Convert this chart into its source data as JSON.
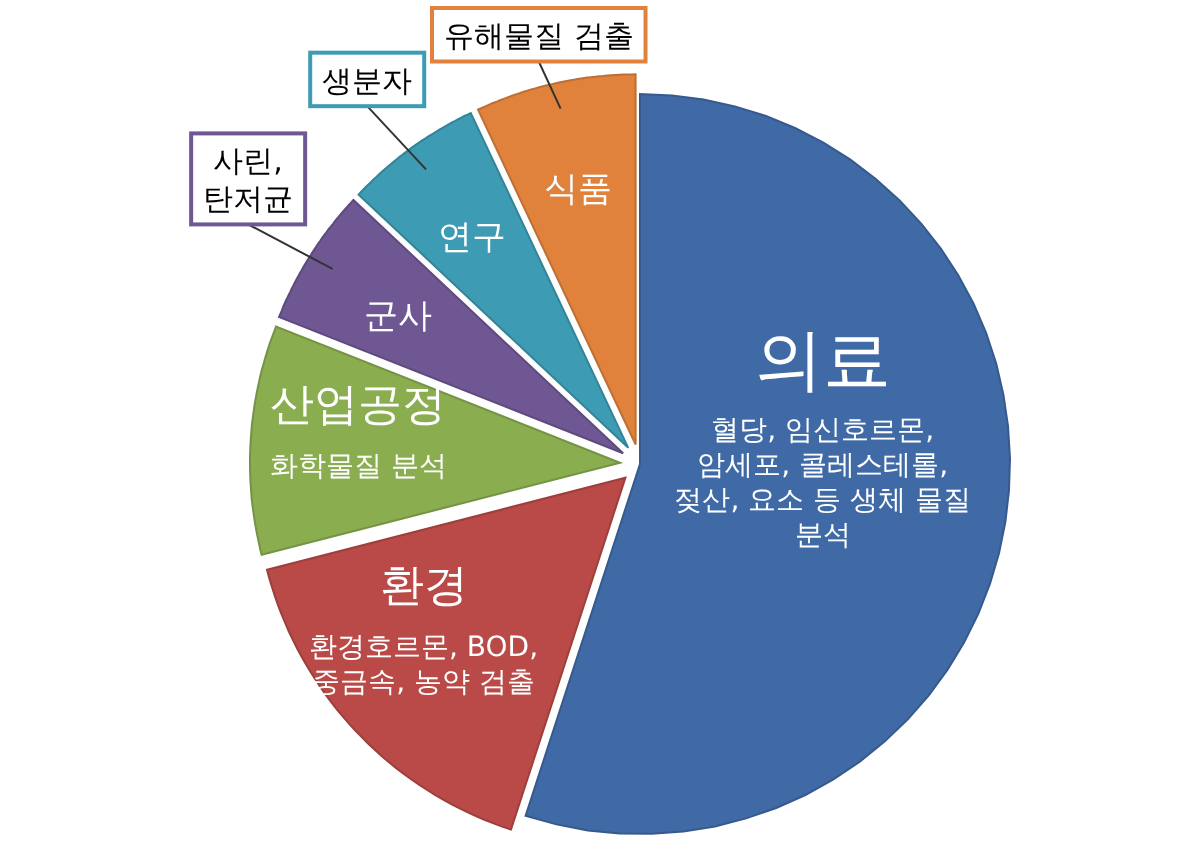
{
  "chart_data": {
    "type": "pie",
    "categories": [
      "의료",
      "환경",
      "산업공정",
      "군사",
      "연구",
      "식품"
    ],
    "values": [
      55,
      16,
      10,
      6,
      6,
      7
    ],
    "colors": [
      "#3f6aa6",
      "#b94a47",
      "#8aad50",
      "#6f5794",
      "#3d9bb3",
      "#e0823c"
    ],
    "annotations": [
      {
        "text": "혈당, 임신호르몬, 암세포, 콜레스테롤, 젖산, 요소 등 생체 물질 분석",
        "x": "의료"
      },
      {
        "text": "환경호르몬, BOD, 중금속, 농약 검출",
        "x": "환경"
      },
      {
        "text": "화학물질 분석",
        "x": "산업공정"
      },
      {
        "text": "사린, 탄저균",
        "x": "군사"
      },
      {
        "text": "생분자",
        "x": "연구"
      },
      {
        "text": "유해물질 검출",
        "x": "식품"
      }
    ]
  }
}
